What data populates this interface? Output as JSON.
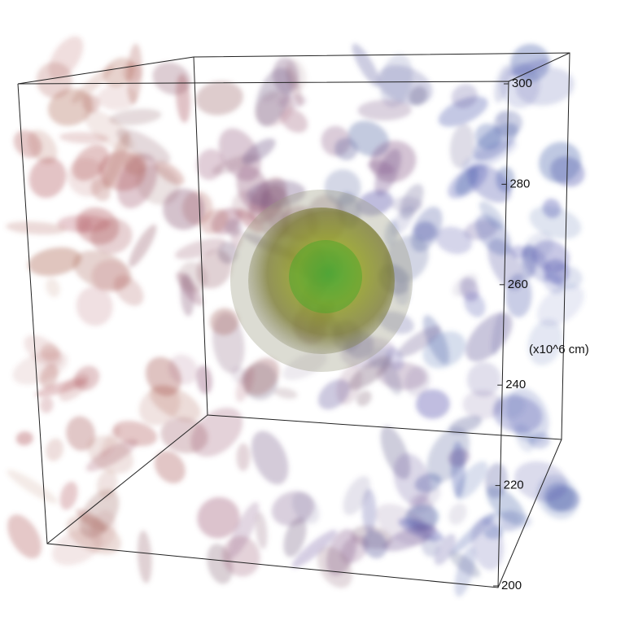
{
  "axis": {
    "label": "(x10^6 cm)",
    "ticks": [
      200,
      220,
      240,
      260,
      280,
      300
    ]
  }
}
